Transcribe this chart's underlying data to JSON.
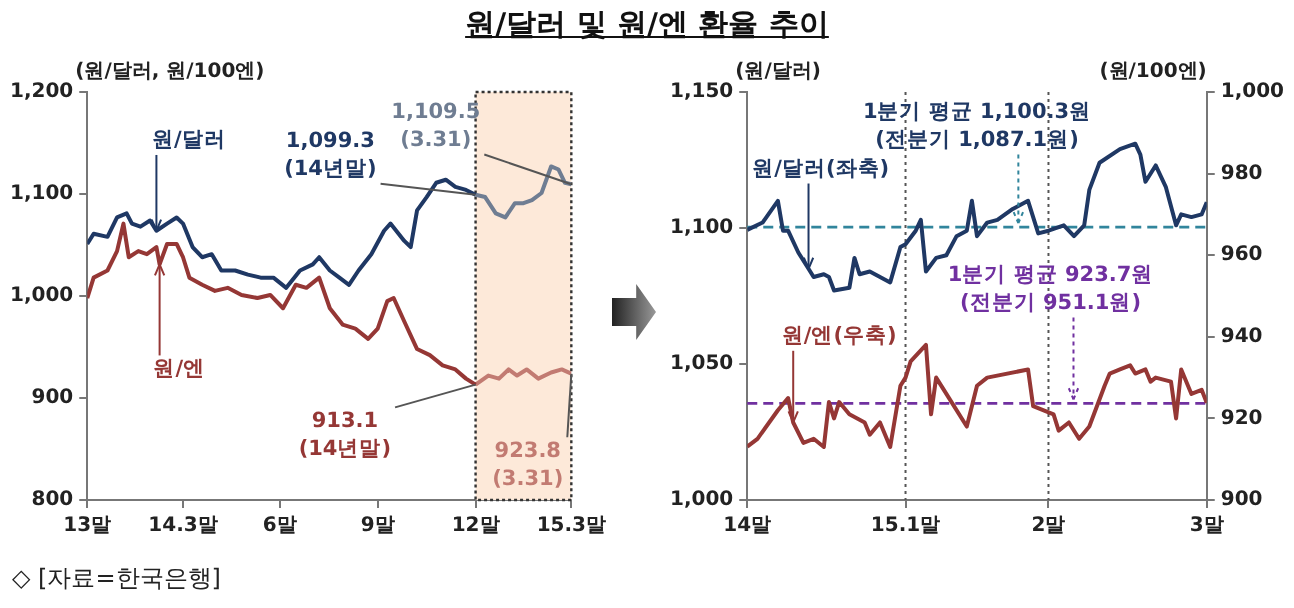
{
  "chart_data": [
    {
      "type": "line",
      "title": "원/달러 및 원/엔 환율 추이",
      "ylabel": "(원/달러, 원/100엔)",
      "xlim": [
        "2013-12-31",
        "2015-03-31"
      ],
      "xticks": [
        {
          "value": "2013-12-31",
          "label": "13말"
        },
        {
          "value": "2014-03-31",
          "label": "14.3말"
        },
        {
          "value": "2014-06-30",
          "label": "6말"
        },
        {
          "value": "2014-09-30",
          "label": "9말"
        },
        {
          "value": "2014-12-31",
          "label": "12말"
        },
        {
          "value": "2015-03-31",
          "label": "15.3말"
        }
      ],
      "ylim": [
        800,
        1200
      ],
      "yticks": [
        {
          "value": 800,
          "label": "800"
        },
        {
          "value": 900,
          "label": "900"
        },
        {
          "value": 1000,
          "label": "1,000"
        },
        {
          "value": 1100,
          "label": "1,100"
        },
        {
          "value": 1200,
          "label": "1,200"
        }
      ],
      "series": [
        {
          "name": "원/달러",
          "color": "#1f3864",
          "x": [
            "2013-12-31",
            "2014-01-06",
            "2014-01-19",
            "2014-01-28",
            "2014-02-06",
            "2014-02-11",
            "2014-02-19",
            "2014-02-28",
            "2014-03-06",
            "2014-03-16",
            "2014-03-25",
            "2014-03-31",
            "2014-04-09",
            "2014-04-18",
            "2014-04-27",
            "2014-05-06",
            "2014-05-19",
            "2014-05-31",
            "2014-06-12",
            "2014-06-24",
            "2014-07-06",
            "2014-07-19",
            "2014-07-31",
            "2014-08-06",
            "2014-08-16",
            "2014-08-25",
            "2014-09-03",
            "2014-09-12",
            "2014-09-24",
            "2014-10-06",
            "2014-10-12",
            "2014-10-25",
            "2014-10-31",
            "2014-11-06",
            "2014-11-15",
            "2014-11-24",
            "2014-12-03",
            "2014-12-12",
            "2014-12-22",
            "2014-12-31"
          ],
          "values": [
            1051,
            1061,
            1058,
            1077,
            1081,
            1071,
            1068,
            1074,
            1064,
            1071,
            1077,
            1071,
            1048,
            1038,
            1041,
            1025,
            1025,
            1021,
            1018,
            1018,
            1008,
            1025,
            1031,
            1038,
            1025,
            1018,
            1011,
            1025,
            1041,
            1064,
            1071,
            1054,
            1048,
            1084,
            1097,
            1111,
            1114,
            1107,
            1104,
            1099.3
          ]
        },
        {
          "name": "원/엔",
          "color": "#953735",
          "x": [
            "2013-12-31",
            "2014-01-06",
            "2014-01-19",
            "2014-01-28",
            "2014-02-03",
            "2014-02-08",
            "2014-02-17",
            "2014-02-25",
            "2014-03-06",
            "2014-03-09",
            "2014-03-16",
            "2014-03-25",
            "2014-03-31",
            "2014-04-06",
            "2014-04-18",
            "2014-04-30",
            "2014-05-12",
            "2014-05-25",
            "2014-06-09",
            "2014-06-21",
            "2014-07-03",
            "2014-07-15",
            "2014-07-25",
            "2014-08-06",
            "2014-08-16",
            "2014-08-28",
            "2014-09-09",
            "2014-09-21",
            "2014-09-30",
            "2014-10-09",
            "2014-10-15",
            "2014-10-25",
            "2014-11-06",
            "2014-11-18",
            "2014-11-30",
            "2014-12-12",
            "2014-12-22",
            "2014-12-31"
          ],
          "values": [
            998,
            1018,
            1025,
            1044,
            1071,
            1038,
            1044,
            1041,
            1048,
            1031,
            1051,
            1051,
            1038,
            1018,
            1011,
            1005,
            1008,
            1001,
            998,
            1001,
            988,
            1011,
            1008,
            1018,
            988,
            972,
            968,
            958,
            968,
            995,
            998,
            975,
            948,
            942,
            932,
            928,
            919,
            913.1
          ]
        },
        {
          "color": "#6f7d92",
          "x": [
            "2014-12-31",
            "2015-01-09",
            "2015-01-19",
            "2015-01-28",
            "2015-02-06",
            "2015-02-14",
            "2015-02-22",
            "2015-03-03",
            "2015-03-12",
            "2015-03-19",
            "2015-03-25",
            "2015-03-31"
          ],
          "values": [
            1099.3,
            1097,
            1081,
            1077,
            1091,
            1091,
            1094,
            1101,
            1127,
            1124,
            1111,
            1109.5
          ]
        },
        {
          "color": "#c27b72",
          "x": [
            "2014-12-31",
            "2015-01-12",
            "2015-01-22",
            "2015-01-31",
            "2015-02-08",
            "2015-02-17",
            "2015-02-28",
            "2015-03-12",
            "2015-03-22",
            "2015-03-31"
          ],
          "values": [
            913.1,
            922,
            919,
            928,
            922,
            928,
            919,
            925,
            928,
            923.8
          ]
        }
      ],
      "bands": [
        {
          "axis": "x",
          "from": "2014-12-31",
          "to": "2015-03-31",
          "color": "#fde9d9"
        }
      ],
      "annotations": [
        {
          "text": "1,099.3\n(14년말)",
          "x": "2014-12-31",
          "y": 1099.3
        },
        {
          "text": "1,109.5\n(3.31)",
          "x": "2015-03-31",
          "y": 1109.5
        },
        {
          "text": "913.1\n(14년말)",
          "x": "2014-12-31",
          "y": 913.1
        },
        {
          "text": "923.8\n(3.31)",
          "x": "2015-03-31",
          "y": 923.8
        },
        "◇ [자료=한국은행]"
      ]
    },
    {
      "type": "line",
      "ylabel": "(원/달러)",
      "y2label": "(원/100엔)",
      "xlim": [
        "2014-12-31",
        "2015-03-31"
      ],
      "xticks": [
        {
          "value": "2014-12-31",
          "label": "14말"
        },
        {
          "value": "2015-01-31",
          "label": "15.1말"
        },
        {
          "value": "2015-02-28",
          "label": "2말"
        },
        {
          "value": "2015-03-31",
          "label": "3말"
        }
      ],
      "ylim": [
        1000,
        1150
      ],
      "yticks": [
        {
          "value": 1000,
          "label": "1,000"
        },
        {
          "value": 1050,
          "label": "1,050"
        },
        {
          "value": 1100,
          "label": "1,100"
        },
        {
          "value": 1150,
          "label": "1,150"
        }
      ],
      "y2lim": [
        900,
        1000
      ],
      "y2ticks": [
        900,
        920,
        940,
        960,
        980,
        {
          "value": 1000,
          "label": "1,000"
        }
      ],
      "series": [
        {
          "name": "원/달러(좌축)",
          "color": "#1f3864",
          "x": [
            "2014-12-31",
            "2015-01-03",
            "2015-01-06",
            "2015-01-07",
            "2015-01-08",
            "2015-01-10",
            "2015-01-12",
            "2015-01-13",
            "2015-01-15",
            "2015-01-16",
            "2015-01-17",
            "2015-01-20",
            "2015-01-21",
            "2015-01-22",
            "2015-01-24",
            "2015-01-28",
            "2015-01-30",
            "2015-01-31",
            "2015-02-02",
            "2015-02-03",
            "2015-02-04",
            "2015-02-06",
            "2015-02-08",
            "2015-02-10",
            "2015-02-12",
            "2015-02-13",
            "2015-02-14",
            "2015-02-16",
            "2015-02-18",
            "2015-02-21",
            "2015-02-24",
            "2015-02-26",
            "2015-02-28",
            "2015-03-03",
            "2015-03-05",
            "2015-03-07",
            "2015-03-08",
            "2015-03-10",
            "2015-03-14",
            "2015-03-17",
            "2015-03-18",
            "2015-03-19",
            "2015-03-21",
            "2015-03-23",
            "2015-03-25",
            "2015-03-26",
            "2015-03-28",
            "2015-03-30",
            "2015-03-31"
          ],
          "values": [
            1099.3,
            1102,
            1110,
            1099,
            1099,
            1091,
            1085,
            1082,
            1083,
            1082,
            1077,
            1078,
            1089,
            1083,
            1084,
            1080,
            1093,
            1094,
            1099,
            1103,
            1084,
            1089,
            1090,
            1097,
            1099,
            1110,
            1097,
            1102,
            1103,
            1107,
            1110,
            1098,
            1099,
            1101,
            1097,
            1101,
            1114,
            1124,
            1129,
            1131,
            1127,
            1117,
            1123,
            1115,
            1101,
            1105,
            1104,
            1105,
            1109.5
          ]
        },
        {
          "name": "원/엔(우축)",
          "color": "#953735",
          "axis": "y2",
          "x": [
            "2014-12-31",
            "2015-01-02",
            "2015-01-06",
            "2015-01-08",
            "2015-01-09",
            "2015-01-11",
            "2015-01-13",
            "2015-01-15",
            "2015-01-16",
            "2015-01-17",
            "2015-01-18",
            "2015-01-20",
            "2015-01-23",
            "2015-01-24",
            "2015-01-26",
            "2015-01-28",
            "2015-01-30",
            "2015-01-31",
            "2015-02-01",
            "2015-02-04",
            "2015-02-05",
            "2015-02-06",
            "2015-02-08",
            "2015-02-12",
            "2015-02-14",
            "2015-02-16",
            "2015-02-24",
            "2015-02-25",
            "2015-03-01",
            "2015-03-02",
            "2015-03-04",
            "2015-03-06",
            "2015-03-08",
            "2015-03-11",
            "2015-03-12",
            "2015-03-14",
            "2015-03-16",
            "2015-03-17",
            "2015-03-19",
            "2015-03-20",
            "2015-03-21",
            "2015-03-24",
            "2015-03-25",
            "2015-03-26",
            "2015-03-28",
            "2015-03-30",
            "2015-03-31"
          ],
          "values": [
            913.1,
            915,
            922,
            925,
            919,
            914,
            915,
            913,
            924,
            920,
            924,
            921,
            919,
            916,
            919,
            913,
            928,
            930,
            934,
            938,
            921,
            930,
            926,
            918,
            928,
            930,
            932,
            923,
            921,
            917,
            919,
            915,
            918,
            928,
            931,
            932,
            933,
            931,
            932,
            929,
            930,
            929,
            920,
            932,
            926,
            927,
            923.8
          ]
        }
      ],
      "ref_lines": [
        {
          "axis": "y",
          "value": 1100.3,
          "label": "1분기 평균 1,100.3원\n(전분기 1,087.1원)",
          "color": "#31859c",
          "line_style": "dashed"
        },
        {
          "axis": "y2",
          "value": 923.7,
          "label": "1분기 평균 923.7원\n(전분기 951.1원)",
          "color": "#7030a0",
          "line_style": "dashed"
        },
        {
          "axis": "x",
          "value": "2015-01-31",
          "color": "#555555",
          "line_style": "dotted"
        },
        {
          "axis": "x",
          "value": "2015-02-28",
          "color": "#555555",
          "line_style": "dotted"
        }
      ]
    }
  ]
}
